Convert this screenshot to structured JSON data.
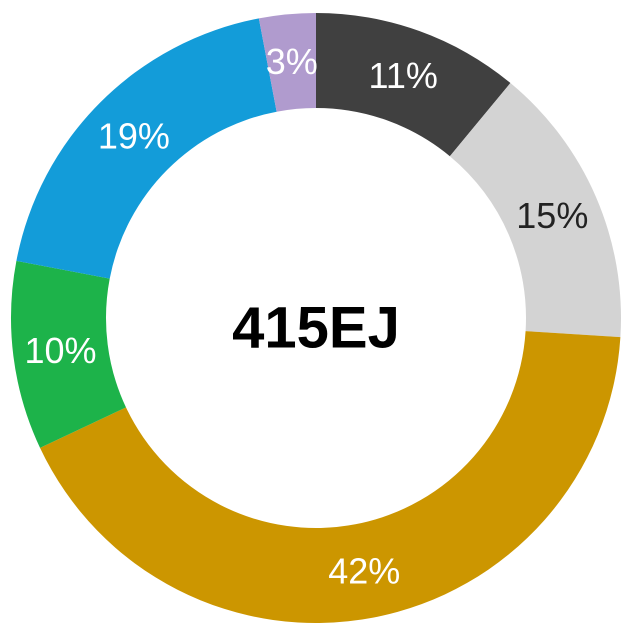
{
  "chart_data": {
    "type": "donut",
    "center_label": "415EJ",
    "values": [
      11,
      15,
      42,
      10,
      19,
      3
    ],
    "value_labels": [
      "11%",
      "15%",
      "42%",
      "10%",
      "19%",
      "3%"
    ],
    "colors": [
      "#404040",
      "#d3d3d3",
      "#cc9600",
      "#1db34a",
      "#139cd9",
      "#b09bce"
    ]
  }
}
